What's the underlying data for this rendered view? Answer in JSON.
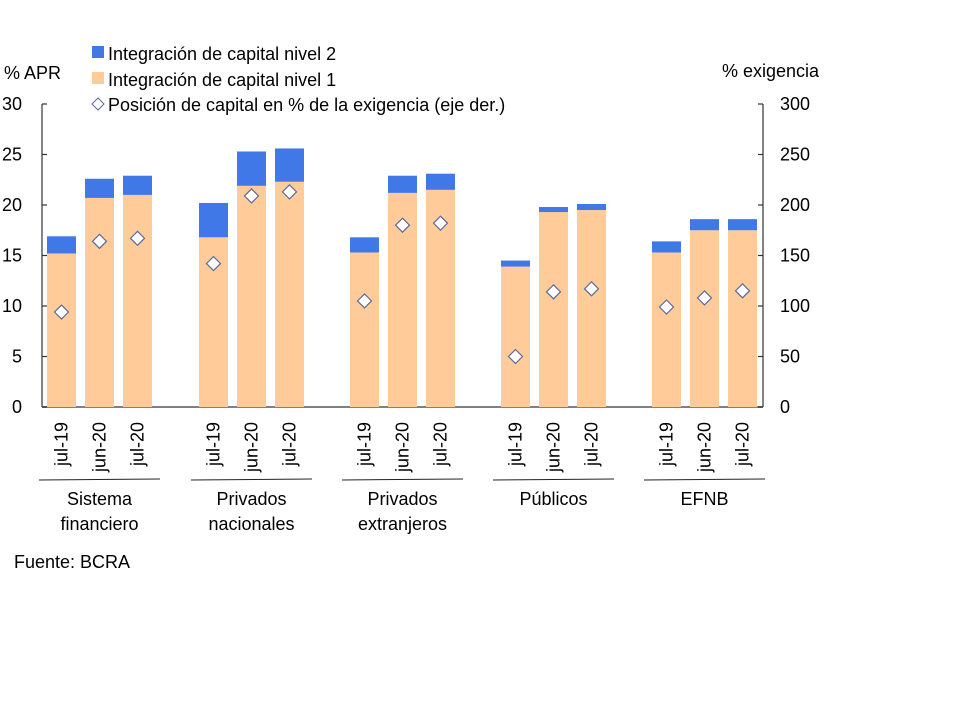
{
  "chart_data": {
    "type": "bar",
    "subtype": "stacked-bar-with-scatter-secondary-axis",
    "title": "",
    "left_axis": {
      "label": "% APR",
      "range": [
        0,
        30
      ],
      "ticks": [
        "0",
        "5",
        "10",
        "15",
        "20",
        "25",
        "30"
      ],
      "tick_values": [
        0,
        5,
        10,
        15,
        20,
        25,
        30
      ]
    },
    "right_axis": {
      "label": "% exigencia",
      "range": [
        0,
        300
      ],
      "ticks": [
        "0",
        "50",
        "100",
        "150",
        "200",
        "250",
        "300"
      ],
      "tick_values": [
        0,
        50,
        100,
        150,
        200,
        250,
        300
      ]
    },
    "grid": false,
    "legend_position": "top",
    "legend": [
      {
        "name": "Integración de capital nivel 2",
        "symbol": "square",
        "color": "#4178E8"
      },
      {
        "name": "Integración de capital nivel 1",
        "symbol": "square",
        "color": "#FFCC99"
      },
      {
        "name": "Posición de capital en % de la exigencia (eje der.)",
        "symbol": "diamond",
        "color": "#FFFFFF",
        "stroke": "#5A6A9A"
      }
    ],
    "groups": [
      {
        "name": "Sistema financiero",
        "lines": [
          "Sistema",
          "financiero"
        ]
      },
      {
        "name": "Privados nacionales",
        "lines": [
          "Privados",
          "nacionales"
        ]
      },
      {
        "name": "Privados extranjeros",
        "lines": [
          "Privados",
          "extranjeros"
        ]
      },
      {
        "name": "Públicos",
        "lines": [
          "Públicos"
        ]
      },
      {
        "name": "EFNB",
        "lines": [
          "EFNB"
        ]
      }
    ],
    "categories": [
      "jul-19",
      "jun-20",
      "jul-20"
    ],
    "series": [
      {
        "name": "Integración de capital nivel 1",
        "axis": "left",
        "type": "bar",
        "color": "#FFCC99",
        "values": [
          [
            15.2,
            20.7,
            21.0
          ],
          [
            16.8,
            21.9,
            22.3
          ],
          [
            15.3,
            21.2,
            21.5
          ],
          [
            13.9,
            19.3,
            19.5
          ],
          [
            15.3,
            17.5,
            17.5
          ]
        ]
      },
      {
        "name": "Integración de capital nivel 2",
        "axis": "left",
        "type": "bar",
        "color": "#4178E8",
        "values": [
          [
            1.7,
            1.9,
            1.9
          ],
          [
            3.4,
            3.4,
            3.3
          ],
          [
            1.5,
            1.7,
            1.6
          ],
          [
            0.6,
            0.5,
            0.6
          ],
          [
            1.1,
            1.1,
            1.1
          ]
        ]
      },
      {
        "name": "Posición de capital en % de la exigencia (eje der.)",
        "axis": "right",
        "type": "scatter",
        "values": [
          [
            94,
            164,
            167
          ],
          [
            142,
            209,
            213
          ],
          [
            105,
            180,
            182
          ],
          [
            50,
            114,
            117
          ],
          [
            99,
            108,
            115
          ]
        ]
      }
    ],
    "source": "Fuente: BCRA"
  }
}
